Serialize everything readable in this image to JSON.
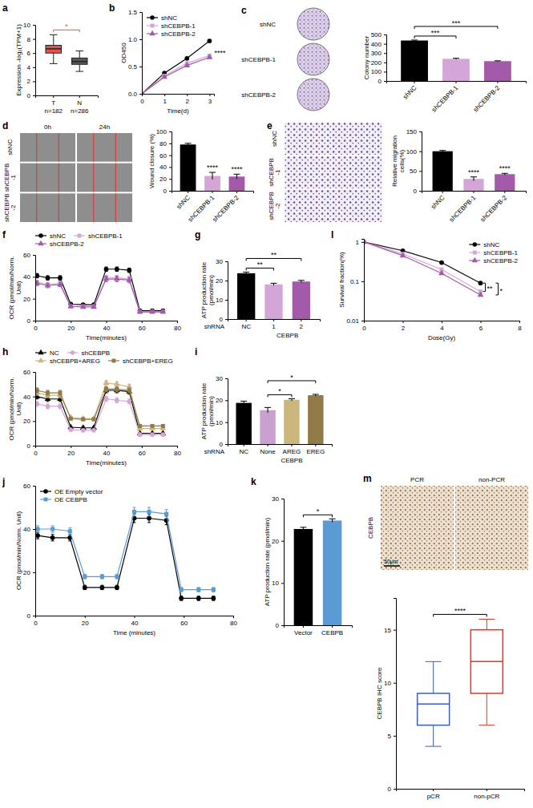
{
  "chart_data": [
    {
      "panel": "a",
      "type": "box",
      "y_label": "Expression -log₂(TPM+1)",
      "boxes": [
        {
          "name": "T",
          "min": 4.5,
          "q1": 6.0,
          "median": 6.6,
          "q3": 7.1,
          "max": 8.6,
          "color": "#e8524a"
        },
        {
          "name": "N",
          "min": 3.4,
          "q1": 4.4,
          "median": 4.8,
          "q3": 5.3,
          "max": 6.3,
          "color": "#595959"
        }
      ],
      "sublabels": [
        "n=182",
        "n=286"
      ],
      "ylim": [
        0,
        10
      ],
      "yticks": [
        0,
        2,
        4,
        6,
        8,
        10
      ],
      "annotations": [
        {
          "text": "*",
          "between": [
            0,
            1
          ],
          "color": "#e8524a"
        }
      ]
    },
    {
      "panel": "b",
      "type": "line",
      "x_label": "Time(d)",
      "y_label": "OD450",
      "x": [
        0,
        1,
        2,
        3
      ],
      "xlim": [
        0,
        3.2
      ],
      "xticks": [
        0,
        1,
        2,
        3
      ],
      "ylim": [
        0,
        1.5
      ],
      "yticks": [
        {
          "value": 0,
          "label": "0.0"
        },
        0.5,
        {
          "value": 1,
          "label": "1.0"
        },
        1.5
      ],
      "legend": "top-left",
      "series": [
        {
          "name": "shNC",
          "color": "#000000",
          "marker": "circle",
          "values": [
            0,
            0.38,
            0.65,
            0.97
          ]
        },
        {
          "name": "shCEBPB-1",
          "color": "#d4a6d8",
          "marker": "square",
          "values": [
            0,
            0.33,
            0.56,
            0.7
          ]
        },
        {
          "name": "shCEBPB-2",
          "color": "#a35aa8",
          "marker": "triangle",
          "values": [
            0,
            0.31,
            0.52,
            0.67
          ]
        }
      ],
      "annotations": [
        {
          "text": "****",
          "x": 3
        }
      ]
    },
    {
      "panel": "c",
      "type": "image",
      "rows": [
        "shNC",
        "shCEBPB-1",
        "shCEBPB-2"
      ]
    },
    {
      "type": "bar",
      "y_label": "Colony number",
      "categories": [
        "shNC",
        "shCEBPB-1",
        "shCEBPB-2"
      ],
      "values": [
        435,
        238,
        213
      ],
      "errors": [
        5,
        6,
        4
      ],
      "colors": [
        "#000000",
        "#d4a6d8",
        "#a35aa8"
      ],
      "ylim": [
        0,
        500
      ],
      "yticks": [
        0,
        100,
        200,
        300,
        400,
        500
      ],
      "annotations": [
        {
          "text": "***",
          "between": [
            0,
            1
          ]
        },
        {
          "text": "***",
          "between": [
            0,
            2
          ]
        }
      ]
    },
    {
      "panel": "d",
      "type": "image",
      "rows": [
        "shNC",
        "shCEBPB -1",
        "shCEBPB -2"
      ],
      "columns": [
        "0h",
        "24h"
      ]
    },
    {
      "type": "bar",
      "y_label": "Wound closure (%)",
      "categories": [
        "shNC",
        "shCEBPB-1",
        "shCEBPB-2"
      ],
      "values": [
        78,
        25,
        24
      ],
      "errors": [
        2,
        6,
        4
      ],
      "colors": [
        "#000000",
        "#d4a6d8",
        "#a35aa8"
      ],
      "ylim": [
        0,
        100
      ],
      "yticks": [
        0,
        20,
        40,
        60,
        80,
        100
      ],
      "annotations": [
        {
          "text": "****",
          "at": 1
        },
        {
          "text": "****",
          "at": 2
        }
      ]
    },
    {
      "panel": "e",
      "type": "image",
      "rows": [
        "shNC",
        "shCEBPB -1",
        "shCEBPB -2"
      ]
    },
    {
      "type": "bar",
      "y_label": "Relative migration cells(%)",
      "categories": [
        "shNC",
        "shCEBPB-1",
        "shCEBPB-2"
      ],
      "values": [
        100,
        30,
        42
      ],
      "errors": [
        2,
        5,
        2
      ],
      "colors": [
        "#000000",
        "#d4a6d8",
        "#a35aa8"
      ],
      "ylim": [
        0,
        150
      ],
      "yticks": [
        0,
        50,
        100,
        150
      ],
      "annotations": [
        {
          "text": "****",
          "at": 1
        },
        {
          "text": "****",
          "at": 2
        }
      ]
    },
    {
      "panel": "f",
      "type": "line",
      "x_label": "Time(minutes)",
      "y_label": "OCR (pmol/min/Norm. Unit)",
      "x": [
        1,
        7,
        14,
        20,
        27,
        33,
        40,
        46,
        53,
        59,
        66,
        72
      ],
      "xlim": [
        0,
        80
      ],
      "xticks": [
        0,
        20,
        40,
        60,
        80
      ],
      "ylim": [
        0,
        60
      ],
      "yticks": [
        0,
        20,
        40,
        60
      ],
      "legend": "top",
      "series": [
        {
          "name": "shNC",
          "color": "#000000",
          "marker": "circle",
          "values": [
            41,
            39,
            39,
            15,
            14.5,
            14.5,
            47,
            47,
            46,
            9,
            9,
            9
          ],
          "errors": [
            2,
            2,
            2,
            1,
            1,
            1,
            2,
            2,
            2,
            1,
            1,
            1
          ]
        },
        {
          "name": "shCEBPB-1",
          "color": "#d4a6d8",
          "marker": "square",
          "values": [
            35,
            33,
            34,
            13,
            13,
            13,
            39,
            39,
            38,
            8,
            8,
            8
          ],
          "errors": [
            2,
            2,
            2,
            1,
            1,
            1,
            2.5,
            2.5,
            2.5,
            1,
            1,
            1
          ]
        },
        {
          "name": "shCEBPB-2",
          "color": "#a35aa8",
          "marker": "triangle",
          "values": [
            34,
            32,
            33,
            13,
            12.5,
            12.5,
            38,
            38,
            37,
            8,
            8,
            8
          ],
          "errors": [
            2,
            2,
            2,
            1,
            1,
            1,
            2.5,
            2.5,
            2.5,
            1,
            1,
            1
          ]
        }
      ]
    },
    {
      "panel": "g",
      "type": "bar",
      "y_label": "ATP production rate (pmol/min)",
      "x_label": "shRNA",
      "group": {
        "text": "CEBPB",
        "span": [
          1,
          2
        ]
      },
      "categories": [
        "NC",
        "1",
        "2"
      ],
      "values": [
        23.8,
        18.0,
        19.5
      ],
      "errors": [
        0.6,
        0.6,
        0.6
      ],
      "colors": [
        "#000000",
        "#d4a6d8",
        "#a35aa8"
      ],
      "ylim": [
        0,
        30
      ],
      "yticks": [
        0,
        10,
        20,
        30
      ],
      "annotations": [
        {
          "text": "**",
          "between": [
            0,
            1
          ]
        },
        {
          "text": "**",
          "between": [
            0,
            2
          ]
        }
      ]
    },
    {
      "panel": "l",
      "type": "line",
      "log": "y",
      "x_label": "Dose(Gy)",
      "y_label": "Survival fraction(%)",
      "x": [
        0,
        2,
        4,
        6
      ],
      "xlim": [
        0,
        8
      ],
      "xticks": [
        0,
        2,
        4,
        6,
        8
      ],
      "ylim": [
        0.01,
        1.2
      ],
      "yticks": [
        0.01,
        0.1,
        1
      ],
      "legend": "top-right",
      "series": [
        {
          "name": "shNC",
          "color": "#000000",
          "marker": "circle",
          "values": [
            1,
            0.6,
            0.3,
            0.09
          ]
        },
        {
          "name": "shCEBPB-1",
          "color": "#d4a6d8",
          "marker": "square",
          "values": [
            1,
            0.5,
            0.2,
            0.055
          ]
        },
        {
          "name": "shCEBPB-2",
          "color": "#a35aa8",
          "marker": "triangle",
          "values": [
            1,
            0.45,
            0.16,
            0.045
          ]
        }
      ],
      "annotations": [
        {
          "text": "**",
          "x": 6,
          "between": [
            0,
            1
          ]
        },
        {
          "text": "*",
          "x": 6,
          "between": [
            0,
            2
          ]
        }
      ]
    },
    {
      "panel": "h",
      "type": "line",
      "x_label": "Time(minutes)",
      "y_label": "OCR (pmol/min/Norm. Unit)",
      "x": [
        1,
        7,
        14,
        20,
        27,
        33,
        40,
        46,
        53,
        59,
        66,
        72
      ],
      "xlim": [
        0,
        80
      ],
      "xticks": [
        0,
        20,
        40,
        60,
        80
      ],
      "ylim": [
        0,
        60
      ],
      "yticks": [
        0,
        20,
        40,
        60
      ],
      "legend": "top",
      "series": [
        {
          "name": "NC",
          "color": "#000000",
          "marker": "triangle",
          "values": [
            40,
            38,
            38,
            15,
            14.5,
            14.5,
            45,
            45,
            44,
            10,
            10,
            10
          ],
          "errors": [
            2,
            2,
            2,
            1,
            1,
            1,
            2,
            2,
            2,
            1,
            1,
            1
          ]
        },
        {
          "name": "shCEBPB",
          "color": "#d4a6d8",
          "marker": "circle",
          "values": [
            34,
            32,
            32,
            13,
            12.5,
            12.5,
            38,
            37,
            36,
            9,
            9,
            9
          ],
          "errors": [
            2,
            2,
            2,
            1,
            1,
            1,
            2,
            2,
            2,
            1,
            1,
            1
          ]
        },
        {
          "name": "shCEBPB+AREG",
          "color": "#cbb67e",
          "marker": "triangle",
          "values": [
            43,
            41,
            41,
            23,
            22,
            22,
            51,
            50,
            48,
            14,
            14,
            14
          ],
          "errors": [
            2,
            2,
            2,
            1,
            1,
            1,
            2,
            2,
            2,
            1,
            1,
            1
          ]
        },
        {
          "name": "shCEBPB+EREG",
          "color": "#8f7a48",
          "marker": "square",
          "values": [
            45,
            43,
            43,
            22,
            21.5,
            21.5,
            46,
            46,
            45,
            16,
            16,
            16
          ],
          "errors": [
            2,
            2,
            2,
            1,
            1,
            1,
            2,
            2,
            2,
            1,
            1,
            1
          ]
        }
      ]
    },
    {
      "panel": "i",
      "type": "bar",
      "y_label": "ATP production rate (pmol/min)",
      "x_label": "shRNA",
      "group": {
        "text": "CEBPB",
        "span": [
          1,
          3
        ]
      },
      "categories": [
        "NC",
        "None",
        "AREG",
        "EREG"
      ],
      "values": [
        18.8,
        15.5,
        20.2,
        22.3
      ],
      "errors": [
        0.8,
        1.2,
        0.5,
        0.4
      ],
      "colors": [
        "#000000",
        "#c9a0d0",
        "#cbb67e",
        "#8f7a48"
      ],
      "ylim": [
        0,
        30
      ],
      "yticks": [
        0,
        10,
        20,
        30
      ],
      "annotations": [
        {
          "text": "*",
          "between": [
            1,
            2
          ]
        },
        {
          "text": "*",
          "between": [
            1,
            3
          ]
        }
      ]
    },
    {
      "panel": "j",
      "type": "line",
      "x_label": "Time (minutes)",
      "y_label": "OCR (pmol/min/Norm. Unit)",
      "x": [
        1,
        7,
        14,
        20,
        27,
        33,
        40,
        46,
        53,
        59,
        66,
        72
      ],
      "xlim": [
        0,
        80
      ],
      "xticks": [
        0,
        20,
        40,
        60,
        80
      ],
      "ylim": [
        0,
        60
      ],
      "yticks": [
        0,
        20,
        40,
        60
      ],
      "legend": "top-left",
      "series": [
        {
          "name": "OE Empty vector",
          "color": "#000000",
          "marker": "circle",
          "values": [
            37,
            36,
            36,
            13,
            13,
            13,
            45,
            45,
            44,
            8,
            8,
            8
          ],
          "errors": [
            1.5,
            1.5,
            1.5,
            1,
            1,
            1,
            2,
            2,
            2,
            1,
            1,
            1
          ]
        },
        {
          "name": "OE CEBPB",
          "color": "#5b9bd5",
          "marker": "square",
          "values": [
            40,
            40,
            39,
            18,
            18,
            18,
            48,
            48,
            47,
            12,
            12,
            12
          ],
          "errors": [
            1.5,
            1.5,
            1.5,
            1,
            1,
            1,
            2,
            2,
            2,
            1,
            1,
            1
          ]
        }
      ]
    },
    {
      "panel": "k",
      "type": "bar",
      "y_label": "ATP production rate (pmol/min)",
      "categories": [
        "Vector",
        "CEBPB"
      ],
      "values": [
        22.8,
        24.8
      ],
      "errors": [
        0.4,
        0.4
      ],
      "colors": [
        "#000000",
        "#5b9bd5"
      ],
      "ylim": [
        0,
        30
      ],
      "yticks": [
        0,
        10,
        20,
        30
      ],
      "annotations": [
        {
          "text": "*",
          "between": [
            0,
            1
          ]
        }
      ]
    },
    {
      "panel": "m",
      "type": "image",
      "rows": [
        "CEBPB"
      ],
      "columns": [
        "PCR",
        "non-PCR"
      ],
      "scale_bar": "50μm"
    },
    {
      "type": "box",
      "y_label": "CEBPB IHC score",
      "boxes": [
        {
          "name": "pCR",
          "min": 4,
          "q1": 6,
          "median": 8,
          "q3": 9,
          "max": 12,
          "color": "#3b5bcc"
        },
        {
          "name": "non-pCR",
          "min": 6,
          "q1": 9,
          "median": 12,
          "q3": 15,
          "max": 16,
          "color": "#e8341c"
        }
      ],
      "ylim": [
        0,
        18
      ],
      "yticks": [
        0,
        5,
        10,
        15
      ],
      "annotations": [
        {
          "text": "****",
          "between": [
            0,
            1
          ]
        }
      ]
    }
  ]
}
